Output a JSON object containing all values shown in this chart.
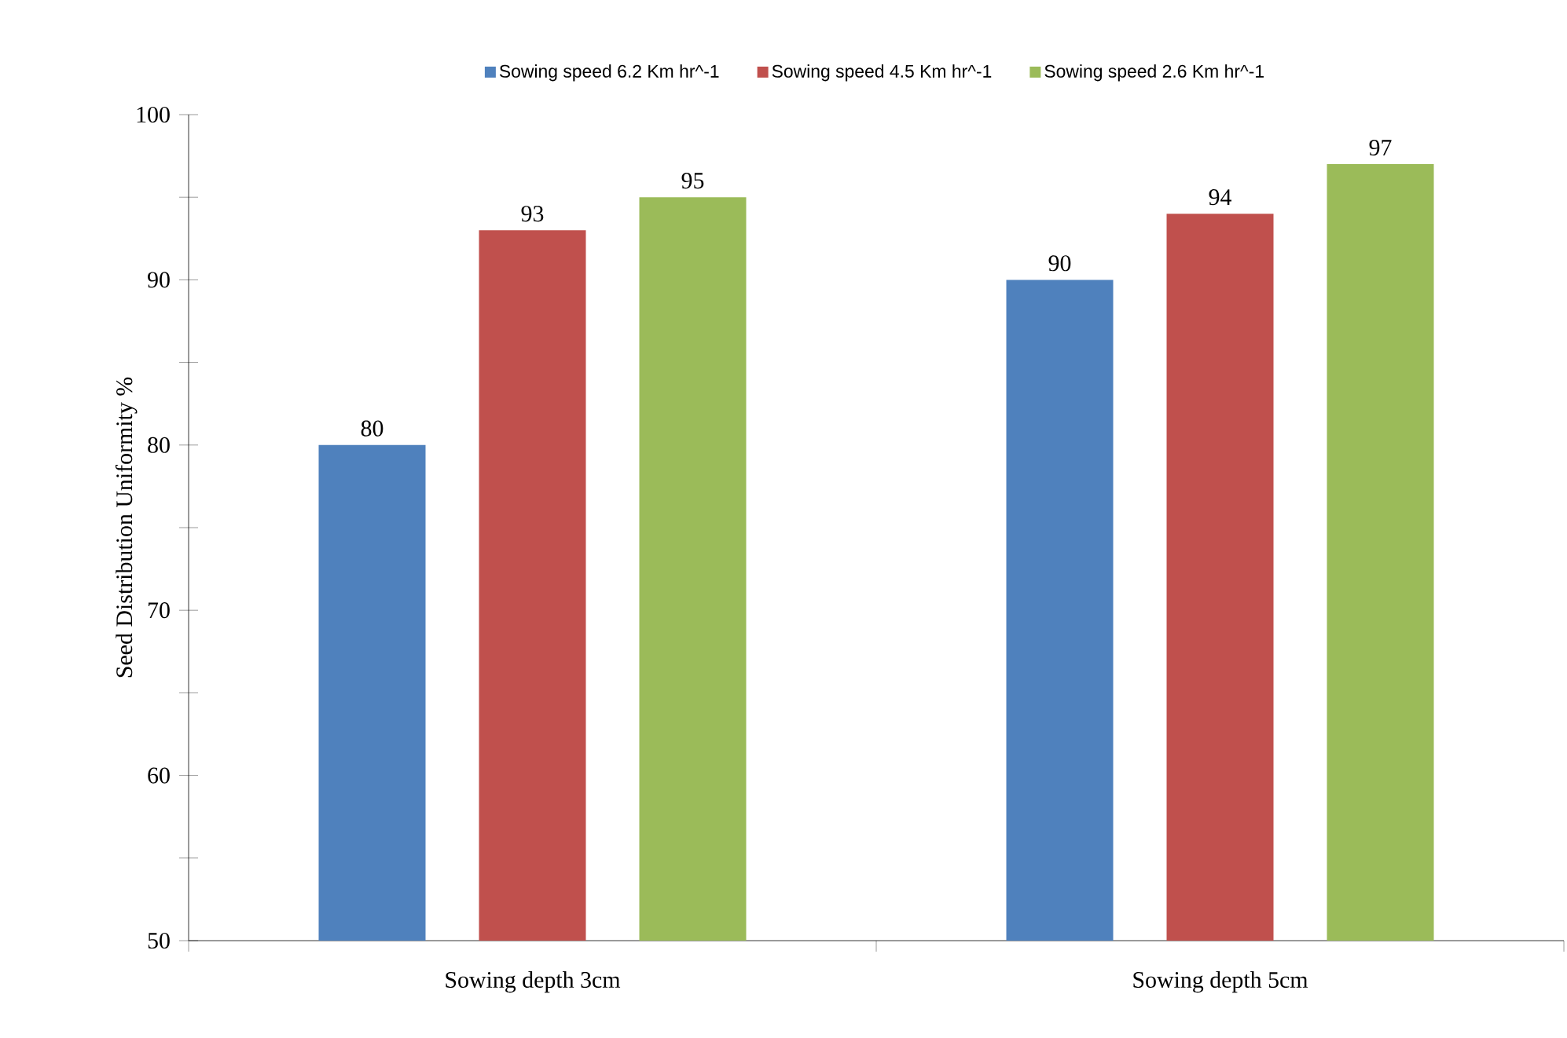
{
  "chart_data": {
    "type": "bar",
    "ylabel": "Seed Distribution Uniformity %",
    "categories": [
      "Sowing depth 3cm",
      "Sowing depth 5cm"
    ],
    "series": [
      {
        "name": "Sowing speed  6.2 Km hr^-1",
        "color": "#4f81bd",
        "values": [
          80,
          90
        ]
      },
      {
        "name": "Sowing speed  4.5 Km hr^-1",
        "color": "#c0504d",
        "values": [
          93,
          94
        ]
      },
      {
        "name": "Sowing speed  2.6 Km hr^-1",
        "color": "#9bbb59",
        "values": [
          95,
          97
        ]
      }
    ],
    "ylim": [
      50,
      100
    ],
    "yticks": [
      50,
      {
        "value": 55,
        "label": null
      },
      60,
      {
        "value": 65,
        "label": null
      },
      70,
      {
        "value": 75,
        "label": null
      },
      80,
      {
        "value": 85,
        "label": null
      },
      90,
      {
        "value": 95,
        "label": null
      },
      100
    ],
    "data_labels": true,
    "legend": "top",
    "grid": false
  }
}
